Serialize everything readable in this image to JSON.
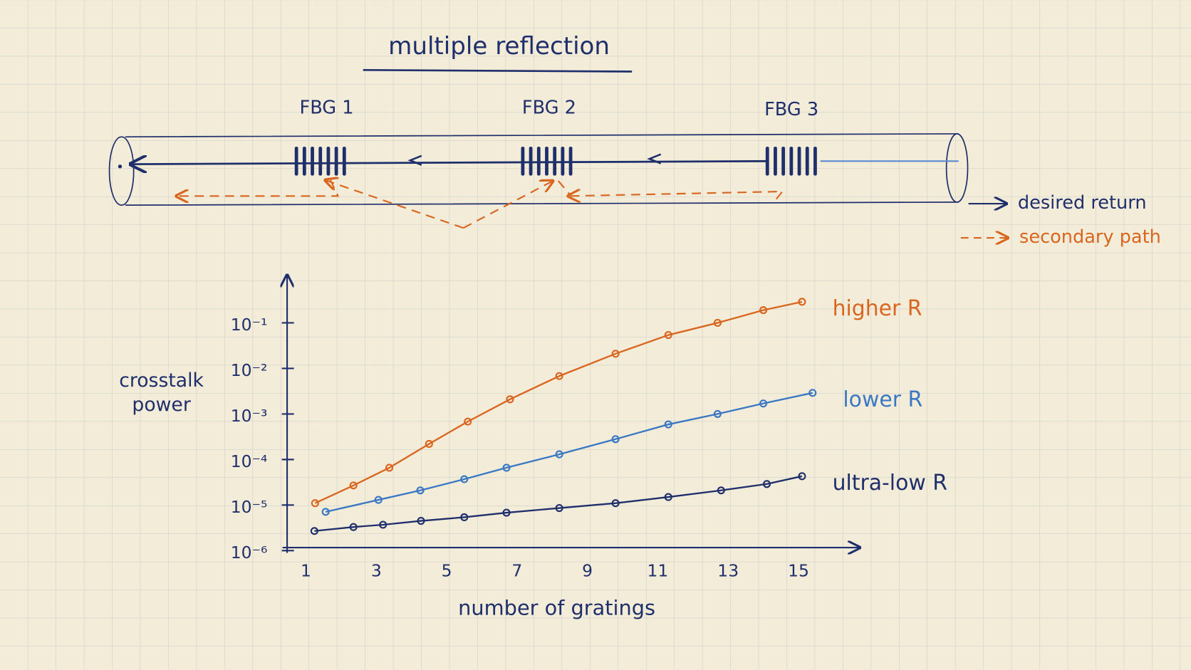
{
  "title": "multiple reflection",
  "diagram": {
    "gratings": [
      "FBG 1",
      "FBG 2",
      "FBG 3"
    ],
    "legend": [
      "desired return",
      "secondary path"
    ]
  },
  "chart_data": {
    "type": "line",
    "log_y": true,
    "x_label": "number of gratings",
    "y_label": "crosstalk power",
    "xlim": [
      0.4,
      16.7
    ],
    "ylim": [
      1e-06,
      1
    ],
    "xticks": [
      1,
      3,
      5,
      7,
      9,
      11,
      13,
      15
    ],
    "yticks": [
      {
        "value": 0.1,
        "label": "10⁻¹"
      },
      {
        "value": 0.01,
        "label": "10⁻²"
      },
      {
        "value": 0.001,
        "label": "10⁻³"
      },
      {
        "value": 0.0001,
        "label": "10⁻⁴"
      },
      {
        "value": 1e-05,
        "label": "10⁻⁵"
      },
      {
        "value": 1e-06,
        "label": "10⁻⁶"
      }
    ],
    "series": [
      {
        "name": "higher R",
        "color": "#d9661f",
        "x": [
          1.26,
          2.35,
          3.37,
          4.5,
          5.6,
          6.8,
          8.2,
          9.8,
          11.3,
          12.7,
          14.0,
          15.1
        ],
        "values": [
          1.1e-05,
          2.7e-05,
          6.6e-05,
          0.00022,
          0.00068,
          0.0021,
          0.0068,
          0.021,
          0.054,
          0.1,
          0.19,
          0.29
        ]
      },
      {
        "name": "lower R",
        "color": "#3a78c4",
        "x": [
          1.56,
          3.06,
          4.25,
          5.5,
          6.7,
          8.2,
          9.8,
          11.3,
          12.7,
          14.0,
          15.4
        ],
        "values": [
          7.1e-06,
          1.3e-05,
          2.1e-05,
          3.7e-05,
          6.6e-05,
          0.00013,
          0.00028,
          0.00059,
          0.001,
          0.0017,
          0.0029
        ]
      },
      {
        "name": "ultra-low R",
        "color": "#1f2f6b",
        "x": [
          1.24,
          2.35,
          3.19,
          4.27,
          5.5,
          6.7,
          8.2,
          9.8,
          11.3,
          12.8,
          14.1,
          15.1
        ],
        "values": [
          2.7e-06,
          3.3e-06,
          3.7e-06,
          4.5e-06,
          5.4e-06,
          6.8e-06,
          8.6e-06,
          1.1e-05,
          1.5e-05,
          2.1e-05,
          2.9e-05,
          4.3e-05
        ]
      }
    ]
  }
}
